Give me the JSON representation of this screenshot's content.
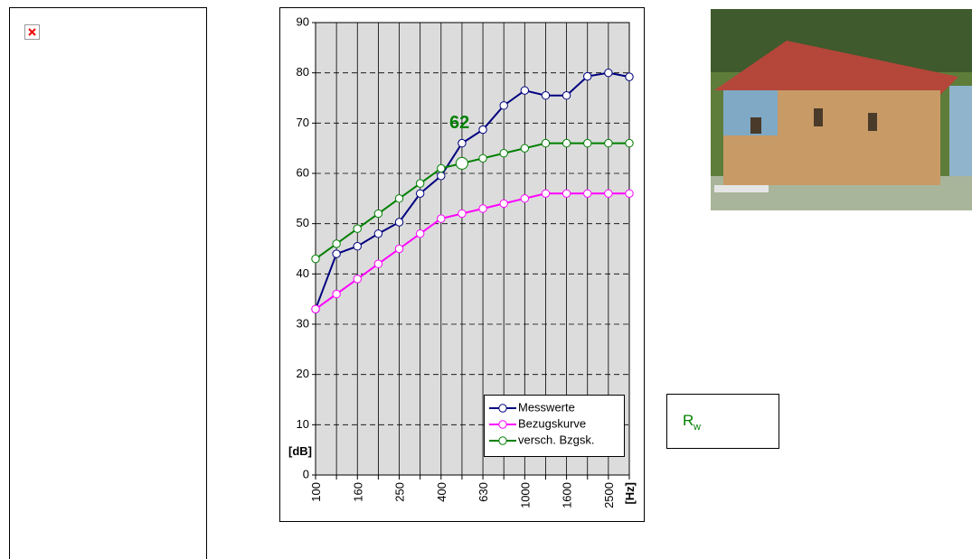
{
  "chart_data": {
    "type": "line",
    "categories": [
      "100",
      null,
      "160",
      null,
      "250",
      null,
      "400",
      null,
      "630",
      null,
      "1000",
      null,
      "1600",
      null,
      "2500",
      null
    ],
    "x_label": "[Hz]",
    "y_label": "[dB]",
    "series": [
      {
        "name": "Messwerte",
        "color": "#000080",
        "values": [
          33,
          44,
          45.5,
          48,
          50.3,
          56,
          59.5,
          66,
          68.7,
          73.5,
          76.5,
          75.5,
          75.5,
          79.3,
          80,
          79.2
        ]
      },
      {
        "name": "Bezugskurve",
        "color": "#ff00ff",
        "values": [
          33,
          36,
          39,
          42,
          45,
          48,
          51,
          52,
          53,
          54,
          55,
          56,
          56,
          56,
          56,
          56
        ]
      },
      {
        "name": "versch. Bzgsk.",
        "color": "#008000",
        "values": [
          43,
          46,
          49,
          52,
          55,
          58,
          61,
          62,
          63,
          64,
          65,
          66,
          66,
          66,
          66,
          66
        ]
      }
    ],
    "annotations": [
      {
        "text": "62"
      }
    ],
    "ylim": [
      0,
      90
    ],
    "yticks": [
      0,
      10,
      20,
      30,
      40,
      50,
      60,
      70,
      80,
      90
    ],
    "grid": true,
    "legend": "lower right"
  },
  "rw_box": {
    "text": "R",
    "subscript": "w"
  }
}
